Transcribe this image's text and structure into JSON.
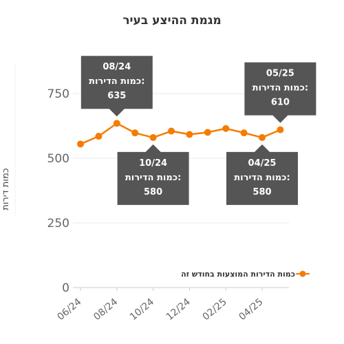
{
  "colors": {
    "series": "#f57c00",
    "tooltip_bg": "#555555",
    "grid": "#e8e8e8",
    "title": "#333333"
  },
  "chart_data": {
    "type": "line",
    "title": "מגמת ההיצע בעיר",
    "ylabel": "כמות דירות",
    "xlabel": "",
    "ylim": [
      0,
      750
    ],
    "yticks": [
      0,
      250,
      500,
      750
    ],
    "grid": true,
    "legend_position": "right",
    "x": [
      "06/24",
      "07/24",
      "08/24",
      "09/24",
      "10/24",
      "11/24",
      "12/24",
      "01/25",
      "02/25",
      "03/25",
      "04/25",
      "05/25"
    ],
    "xtick_labels": [
      "06/24",
      "08/24",
      "10/24",
      "12/24",
      "02/25",
      "04/25"
    ],
    "series": [
      {
        "name": "כמות הדירות המוצעות בחודש זה",
        "values": [
          555,
          585,
          635,
          598,
          580,
          605,
          592,
          600,
          615,
          598,
          580,
          610
        ]
      }
    ],
    "tooltips": [
      {
        "date": "08/24",
        "label": "כמות הדירות:",
        "value": "635",
        "index": 2,
        "placement": "above"
      },
      {
        "date": "10/24",
        "label": "כמות הדירות:",
        "value": "580",
        "index": 4,
        "placement": "below"
      },
      {
        "date": "04/25",
        "label": "כמות הדירות:",
        "value": "580",
        "index": 10,
        "placement": "below"
      },
      {
        "date": "05/25",
        "label": "כמות הדירות:",
        "value": "610",
        "index": 11,
        "placement": "above"
      }
    ]
  }
}
